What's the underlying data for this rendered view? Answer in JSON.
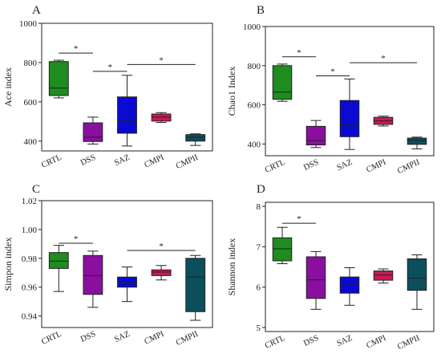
{
  "chart_data": [
    {
      "panel": "A",
      "type": "box",
      "ylabel": "Ace index",
      "ylim": [
        350,
        1000
      ],
      "yticks": [
        400,
        600,
        800,
        1000
      ],
      "categories": [
        "CRTL",
        "DSS",
        "SAZ",
        "CMPI",
        "CMPII"
      ],
      "colors": [
        "#1e8c1e",
        "#8a0f9e",
        "#0a0ad2",
        "#c8195a",
        "#0b4f5c"
      ],
      "boxes": [
        {
          "min": 620,
          "q1": 632,
          "median": 670,
          "q3": 805,
          "max": 812
        },
        {
          "min": 385,
          "q1": 398,
          "median": 420,
          "q3": 493,
          "max": 522
        },
        {
          "min": 375,
          "q1": 440,
          "median": 505,
          "q3": 625,
          "max": 735
        },
        {
          "min": 495,
          "q1": 502,
          "median": 522,
          "q3": 538,
          "max": 545
        },
        {
          "min": 378,
          "q1": 400,
          "median": 420,
          "q3": 433,
          "max": 437
        }
      ],
      "significance": [
        {
          "from": 0,
          "to": 1,
          "y": 848,
          "label": "*"
        },
        {
          "from": 1,
          "to": 2,
          "y": 755,
          "label": "*"
        },
        {
          "from": 2,
          "to": 4,
          "y": 790,
          "label": "*"
        }
      ]
    },
    {
      "panel": "B",
      "type": "box",
      "ylabel": "Chao1 Index",
      "ylim": [
        340,
        1000
      ],
      "yticks": [
        400,
        600,
        800,
        1000
      ],
      "categories": [
        "CRTL",
        "DSS",
        "SAZ",
        "CMPI",
        "CMPII"
      ],
      "colors": [
        "#1e8c1e",
        "#8a0f9e",
        "#0a0ad2",
        "#c8195a",
        "#0b4f5c"
      ],
      "boxes": [
        {
          "min": 618,
          "q1": 628,
          "median": 665,
          "q3": 800,
          "max": 808
        },
        {
          "min": 382,
          "q1": 395,
          "median": 418,
          "q3": 490,
          "max": 520
        },
        {
          "min": 372,
          "q1": 437,
          "median": 500,
          "q3": 622,
          "max": 732
        },
        {
          "min": 492,
          "q1": 500,
          "median": 518,
          "q3": 536,
          "max": 542
        },
        {
          "min": 375,
          "q1": 398,
          "median": 418,
          "q3": 430,
          "max": 435
        }
      ],
      "significance": [
        {
          "from": 0,
          "to": 1,
          "y": 845,
          "label": "*"
        },
        {
          "from": 1,
          "to": 2,
          "y": 748,
          "label": "*"
        },
        {
          "from": 2,
          "to": 4,
          "y": 815,
          "label": "*"
        }
      ]
    },
    {
      "panel": "C",
      "type": "box",
      "ylabel": "Simpon index",
      "ylim": [
        0.932,
        1.02
      ],
      "yticks": [
        0.94,
        0.96,
        0.98,
        1.0,
        1.02
      ],
      "ytick_labels": [
        "0.94",
        "0.96",
        "0.98",
        "1.00",
        "1.02"
      ],
      "categories": [
        "CRTL",
        "DSS",
        "SAZ",
        "CMPI",
        "CMPII"
      ],
      "colors": [
        "#1e8c1e",
        "#8a0f9e",
        "#0a0ad2",
        "#c8195a",
        "#0b4f5c"
      ],
      "boxes": [
        {
          "min": 0.957,
          "q1": 0.973,
          "median": 0.978,
          "q3": 0.984,
          "max": 0.989
        },
        {
          "min": 0.946,
          "q1": 0.955,
          "median": 0.968,
          "q3": 0.982,
          "max": 0.985
        },
        {
          "min": 0.95,
          "q1": 0.96,
          "median": 0.9635,
          "q3": 0.967,
          "max": 0.974
        },
        {
          "min": 0.965,
          "q1": 0.968,
          "median": 0.9705,
          "q3": 0.972,
          "max": 0.975
        },
        {
          "min": 0.937,
          "q1": 0.943,
          "median": 0.967,
          "q3": 0.98,
          "max": 0.982
        }
      ],
      "significance": [
        {
          "from": 0,
          "to": 1,
          "y": 0.9905,
          "label": "*"
        },
        {
          "from": 2,
          "to": 4,
          "y": 0.9855,
          "label": "*"
        }
      ]
    },
    {
      "panel": "D",
      "type": "box",
      "ylabel": "Shannon index",
      "ylim": [
        4.9,
        8.1
      ],
      "yticks": [
        5,
        6,
        7,
        8
      ],
      "categories": [
        "CRTL",
        "DSS",
        "SAZ",
        "CMPI",
        "CMPII"
      ],
      "colors": [
        "#1e8c1e",
        "#8a0f9e",
        "#0a0ad2",
        "#c8195a",
        "#0b4f5c"
      ],
      "boxes": [
        {
          "min": 6.58,
          "q1": 6.65,
          "median": 6.95,
          "q3": 7.22,
          "max": 7.48
        },
        {
          "min": 5.45,
          "q1": 5.72,
          "median": 6.18,
          "q3": 6.75,
          "max": 6.88
        },
        {
          "min": 5.55,
          "q1": 5.85,
          "median": 6.05,
          "q3": 6.25,
          "max": 6.48
        },
        {
          "min": 6.1,
          "q1": 6.17,
          "median": 6.3,
          "q3": 6.4,
          "max": 6.45
        },
        {
          "min": 5.45,
          "q1": 5.92,
          "median": 6.22,
          "q3": 6.7,
          "max": 6.8
        }
      ],
      "significance": [
        {
          "from": 0,
          "to": 1,
          "y": 7.58,
          "label": "*"
        }
      ]
    }
  ]
}
